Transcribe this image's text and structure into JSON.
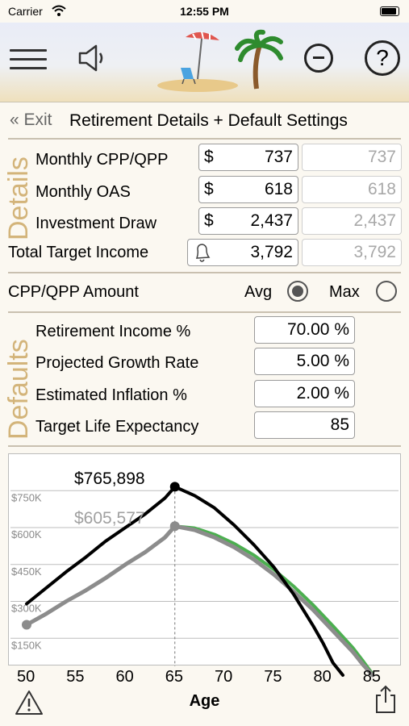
{
  "status": {
    "carrier": "Carrier",
    "time": "12:55 PM"
  },
  "toolbar": {
    "menu_icon": "hamburger-menu-icon",
    "sound_icon": "speaker-icon",
    "logo": "beach-palm-logo",
    "zoom_out_icon": "minus-circle-icon",
    "help_icon": "help-icon"
  },
  "header": {
    "exit_label": "« Exit",
    "title": "Retirement Details + Default Settings"
  },
  "details": {
    "section_label": "Details",
    "rows": [
      {
        "label": "Monthly CPP/QPP",
        "prefix": "$",
        "value": "737",
        "compare": "737"
      },
      {
        "label": "Monthly OAS",
        "prefix": "$",
        "value": "618",
        "compare": "618"
      },
      {
        "label": "Investment Draw",
        "prefix": "$",
        "value": "2,437",
        "compare": "2,437"
      },
      {
        "label": "Total Target Income",
        "prefix": "",
        "value": "3,792",
        "compare": "3,792"
      }
    ]
  },
  "cpp": {
    "label": "CPP/QPP Amount",
    "avg_label": "Avg",
    "max_label": "Max",
    "selected": "Avg"
  },
  "defaults": {
    "section_label": "Defaults",
    "rows": [
      {
        "label": "Retirement Income %",
        "value": "70.00 %"
      },
      {
        "label": "Projected Growth Rate",
        "value": "5.00 %"
      },
      {
        "label": "Estimated Inflation %",
        "value": "2.00 %"
      },
      {
        "label": "Target Life Expectancy",
        "value": "85"
      }
    ]
  },
  "chart_data": {
    "type": "line",
    "xlabel": "Age",
    "ylabel": "",
    "x_ticks": [
      "50",
      "55",
      "60",
      "65",
      "70",
      "75",
      "80",
      "85"
    ],
    "y_ticks": [
      "$150K",
      "$300K",
      "$450K",
      "$600K",
      "$750K"
    ],
    "xlim": [
      50,
      86
    ],
    "ylim": [
      0,
      800000
    ],
    "annotations": [
      "$765,898",
      "$605,577"
    ],
    "colors": {
      "primary": "#000000",
      "secondary": "#8c8c8c",
      "tertiary": "#4caf50"
    },
    "series": [
      {
        "x": [
          50,
          52,
          54,
          56,
          58,
          60,
          62,
          64,
          65,
          67,
          69,
          71,
          73,
          75,
          77,
          79,
          80,
          81,
          82
        ],
        "y": [
          290000,
          355000,
          420000,
          480000,
          545000,
          600000,
          655000,
          720000,
          765898,
          730000,
          680000,
          610000,
          530000,
          440000,
          330000,
          200000,
          130000,
          50000,
          0
        ]
      },
      {
        "x": [
          50,
          52,
          54,
          56,
          58,
          60,
          62,
          64,
          65,
          67,
          69,
          71,
          73,
          75,
          77,
          79,
          81,
          83,
          84,
          85
        ],
        "y": [
          205000,
          250000,
          300000,
          345000,
          395000,
          450000,
          500000,
          560000,
          605577,
          590000,
          560000,
          520000,
          470000,
          410000,
          340000,
          265000,
          180000,
          95000,
          45000,
          0
        ]
      },
      {
        "x": [
          65,
          67,
          69,
          71,
          73,
          75,
          77,
          79,
          81,
          83,
          84,
          85
        ],
        "y": [
          605577,
          598000,
          572000,
          535000,
          488000,
          430000,
          362000,
          285000,
          200000,
          112000,
          60000,
          5000
        ]
      }
    ]
  },
  "footer": {
    "warning_icon": "warning-icon",
    "share_icon": "share-icon"
  }
}
